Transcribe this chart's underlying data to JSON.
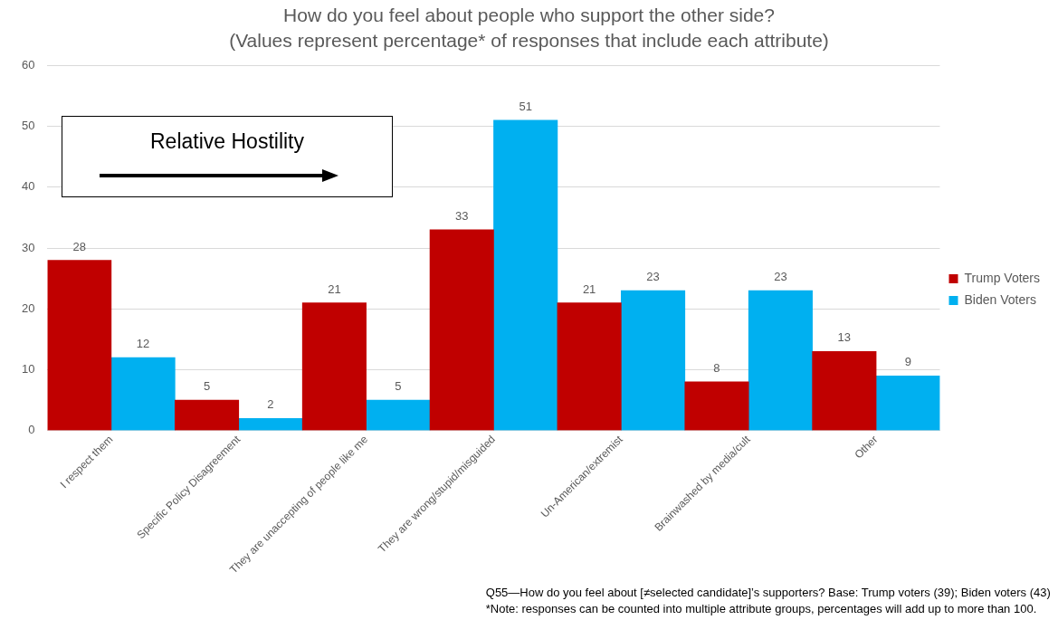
{
  "chart_data": {
    "type": "bar",
    "title": "How do you feel about people who support the other side?",
    "subtitle": "(Values represent percentage* of responses that include each attribute)",
    "categories": [
      "I respect them",
      "Specific Policy Disagreement",
      "They are unaccepting of people like me",
      "They are wrong/stupid/misguided",
      "Un-American/extremist",
      "Brainwashed by media/cult",
      "Other"
    ],
    "series": [
      {
        "name": "Trump Voters",
        "color": "#c00000",
        "values": [
          28,
          5,
          21,
          33,
          21,
          8,
          13
        ]
      },
      {
        "name": "Biden Voters",
        "color": "#00b0f0",
        "values": [
          12,
          2,
          5,
          51,
          23,
          23,
          9
        ]
      }
    ],
    "ylim": [
      0,
      60
    ],
    "yticks": [
      0,
      10,
      20,
      30,
      40,
      50,
      60
    ],
    "grid": "y",
    "legend": "right",
    "data_labels": true,
    "annotations": [
      "Relative Hostility",
      "Q55—How do you feel about [≠selected candidate]’s supporters? Base: Trump voters (39); Biden voters (43)",
      "*Note: responses can be counted into multiple attribute groups, percentages will add up to more than 100."
    ]
  }
}
